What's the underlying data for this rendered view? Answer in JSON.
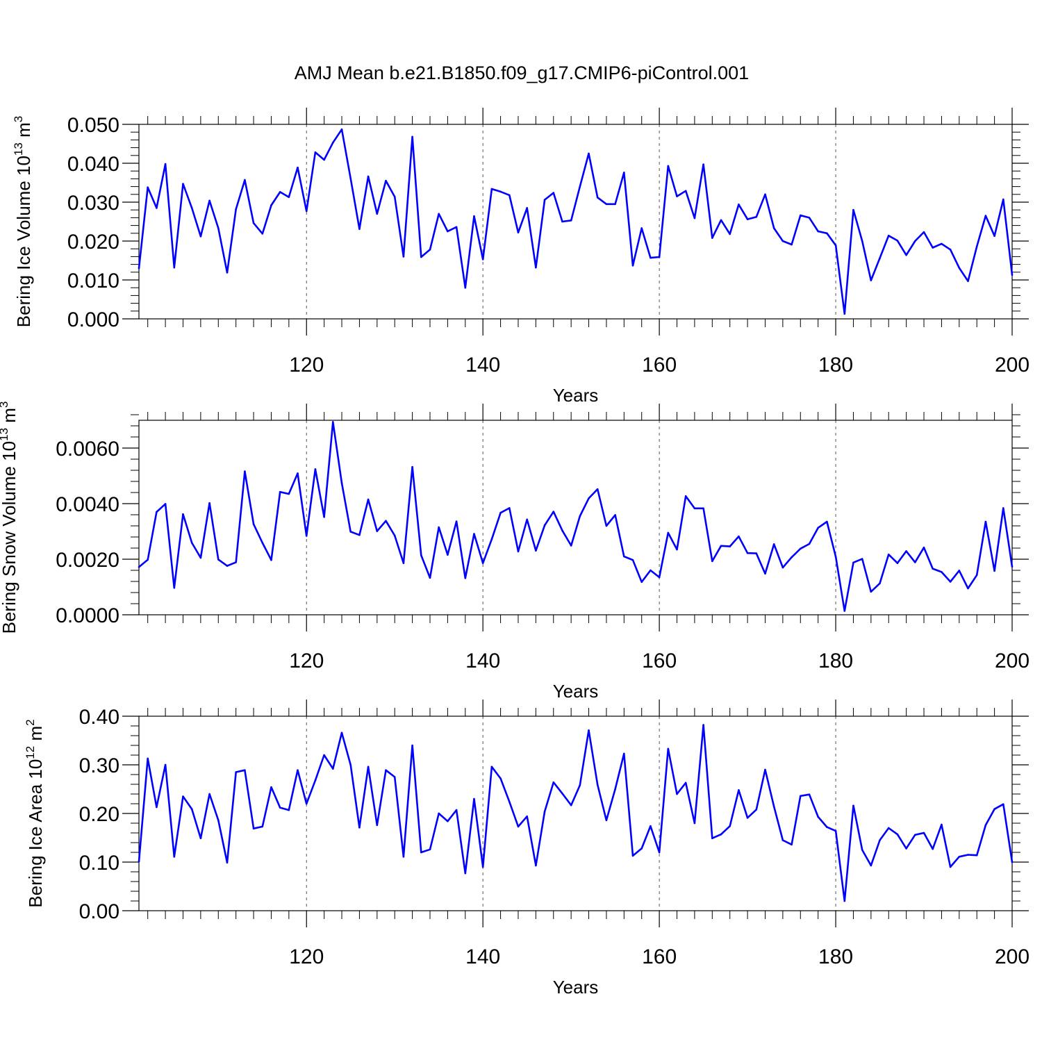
{
  "figure": {
    "title": "AMJ Mean b.e21.B1850.f09_g17.CMIP6-piControl.001",
    "line_color": "#0000ff",
    "axis_color": "#000000",
    "grid_color": "#555555"
  },
  "chart_data": [
    {
      "type": "line",
      "ylabel": "Bering Ice Volume 10",
      "ylabel_exponent": "13",
      "ylabel_unit": " m",
      "ylabel_unit_exponent": "3",
      "xlabel": "Years",
      "xlim": [
        101,
        200
      ],
      "ylim": [
        0,
        0.05
      ],
      "x_ticks": [
        120,
        140,
        160,
        180,
        200
      ],
      "x_tick_labels": [
        "120",
        "140",
        "160",
        "180",
        "200"
      ],
      "y_ticks": [
        0,
        0.01,
        0.02,
        0.03,
        0.04,
        0.05
      ],
      "y_tick_labels": [
        "0.000",
        "0.010",
        "0.020",
        "0.030",
        "0.040",
        "0.050"
      ],
      "y_minor_step": 0.002,
      "vertical_grid": true,
      "x_start": 101,
      "series": [
        {
          "values": [
            0.013,
            0.0338,
            0.0285,
            0.0398,
            0.0132,
            0.0347,
            0.0285,
            0.0212,
            0.0304,
            0.0233,
            0.0119,
            0.0282,
            0.0357,
            0.0246,
            0.0219,
            0.0292,
            0.0326,
            0.0313,
            0.0389,
            0.0277,
            0.0428,
            0.0409,
            0.0453,
            0.0487,
            0.0361,
            0.0231,
            0.0366,
            0.027,
            0.0355,
            0.0314,
            0.016,
            0.0468,
            0.0159,
            0.0178,
            0.027,
            0.0225,
            0.0236,
            0.008,
            0.0264,
            0.0153,
            0.0334,
            0.0327,
            0.0318,
            0.0222,
            0.0285,
            0.0132,
            0.0306,
            0.0324,
            0.025,
            0.0253,
            0.034,
            0.0425,
            0.0312,
            0.0295,
            0.0295,
            0.0376,
            0.0137,
            0.0233,
            0.0157,
            0.0159,
            0.0393,
            0.0315,
            0.0329,
            0.0259,
            0.0397,
            0.0208,
            0.0254,
            0.0218,
            0.0294,
            0.0256,
            0.0262,
            0.032,
            0.0233,
            0.02,
            0.0191,
            0.0266,
            0.026,
            0.0225,
            0.022,
            0.0189,
            0.0013,
            0.028,
            0.02,
            0.0099,
            0.0156,
            0.0214,
            0.0201,
            0.0164,
            0.02,
            0.0223,
            0.0183,
            0.0193,
            0.0178,
            0.0131,
            0.0097,
            0.0186,
            0.0265,
            0.0213,
            0.0307,
            0.0113
          ]
        }
      ]
    },
    {
      "type": "line",
      "ylabel": "Bering Snow Volume 10",
      "ylabel_exponent": "13",
      "ylabel_unit": " m",
      "ylabel_unit_exponent": "3",
      "xlabel": "Years",
      "xlim": [
        101,
        200
      ],
      "ylim": [
        0,
        0.007
      ],
      "x_ticks": [
        120,
        140,
        160,
        180,
        200
      ],
      "x_tick_labels": [
        "120",
        "140",
        "160",
        "180",
        "200"
      ],
      "y_ticks": [
        0,
        0.002,
        0.004,
        0.006
      ],
      "y_tick_labels": [
        "0.0000",
        "0.0020",
        "0.0040",
        "0.0060"
      ],
      "y_minor_step": 0.0004,
      "vertical_grid": true,
      "x_start": 101,
      "series": [
        {
          "values": [
            0.00172,
            0.00198,
            0.0037,
            0.00399,
            0.00097,
            0.00362,
            0.00259,
            0.00205,
            0.00402,
            0.00199,
            0.00176,
            0.00189,
            0.00516,
            0.00326,
            0.00259,
            0.00197,
            0.00442,
            0.00435,
            0.00509,
            0.00284,
            0.00524,
            0.00352,
            0.00694,
            0.00474,
            0.00299,
            0.00287,
            0.00415,
            0.00301,
            0.00338,
            0.00285,
            0.00186,
            0.00532,
            0.00214,
            0.00133,
            0.00315,
            0.00216,
            0.00336,
            0.00132,
            0.00291,
            0.00186,
            0.00272,
            0.00367,
            0.00384,
            0.00228,
            0.00343,
            0.00231,
            0.00322,
            0.00371,
            0.00303,
            0.00249,
            0.00355,
            0.00419,
            0.00452,
            0.0032,
            0.00359,
            0.0021,
            0.00197,
            0.00118,
            0.0016,
            0.00135,
            0.00295,
            0.00235,
            0.00427,
            0.00383,
            0.00383,
            0.00193,
            0.00248,
            0.00246,
            0.00282,
            0.00222,
            0.00221,
            0.00148,
            0.00254,
            0.0017,
            0.00207,
            0.00238,
            0.00255,
            0.00313,
            0.00335,
            0.00209,
            0.00014,
            0.00188,
            0.00201,
            0.00083,
            0.00113,
            0.00217,
            0.00186,
            0.00229,
            0.00189,
            0.00242,
            0.00166,
            0.00154,
            0.00119,
            0.00159,
            0.00095,
            0.00143,
            0.00335,
            0.00158,
            0.00384,
            0.00173
          ]
        }
      ]
    },
    {
      "type": "line",
      "ylabel": "Bering Ice Area 10",
      "ylabel_exponent": "12",
      "ylabel_unit": " m",
      "ylabel_unit_exponent": "2",
      "xlabel": "Years",
      "xlim": [
        101,
        200
      ],
      "ylim": [
        0,
        0.4
      ],
      "x_ticks": [
        120,
        140,
        160,
        180,
        200
      ],
      "x_tick_labels": [
        "120",
        "140",
        "160",
        "180",
        "200"
      ],
      "y_ticks": [
        0,
        0.1,
        0.2,
        0.3,
        0.4
      ],
      "y_tick_labels": [
        "0.00",
        "0.10",
        "0.20",
        "0.30",
        "0.40"
      ],
      "y_minor_step": 0.02,
      "vertical_grid": true,
      "x_start": 101,
      "series": [
        {
          "values": [
            0.101,
            0.313,
            0.213,
            0.3,
            0.111,
            0.235,
            0.209,
            0.149,
            0.24,
            0.186,
            0.099,
            0.285,
            0.289,
            0.169,
            0.173,
            0.254,
            0.212,
            0.207,
            0.289,
            0.22,
            0.268,
            0.32,
            0.292,
            0.366,
            0.3,
            0.171,
            0.296,
            0.176,
            0.289,
            0.275,
            0.111,
            0.34,
            0.12,
            0.126,
            0.2,
            0.184,
            0.207,
            0.077,
            0.23,
            0.09,
            0.296,
            0.272,
            0.224,
            0.173,
            0.194,
            0.093,
            0.204,
            0.264,
            0.241,
            0.217,
            0.258,
            0.371,
            0.259,
            0.186,
            0.25,
            0.323,
            0.113,
            0.128,
            0.174,
            0.12,
            0.333,
            0.24,
            0.263,
            0.18,
            0.382,
            0.149,
            0.157,
            0.174,
            0.248,
            0.191,
            0.208,
            0.29,
            0.214,
            0.145,
            0.136,
            0.236,
            0.239,
            0.193,
            0.172,
            0.164,
            0.02,
            0.216,
            0.125,
            0.093,
            0.145,
            0.17,
            0.157,
            0.128,
            0.156,
            0.16,
            0.127,
            0.177,
            0.09,
            0.111,
            0.115,
            0.114,
            0.176,
            0.209,
            0.219,
            0.1
          ]
        }
      ]
    }
  ]
}
